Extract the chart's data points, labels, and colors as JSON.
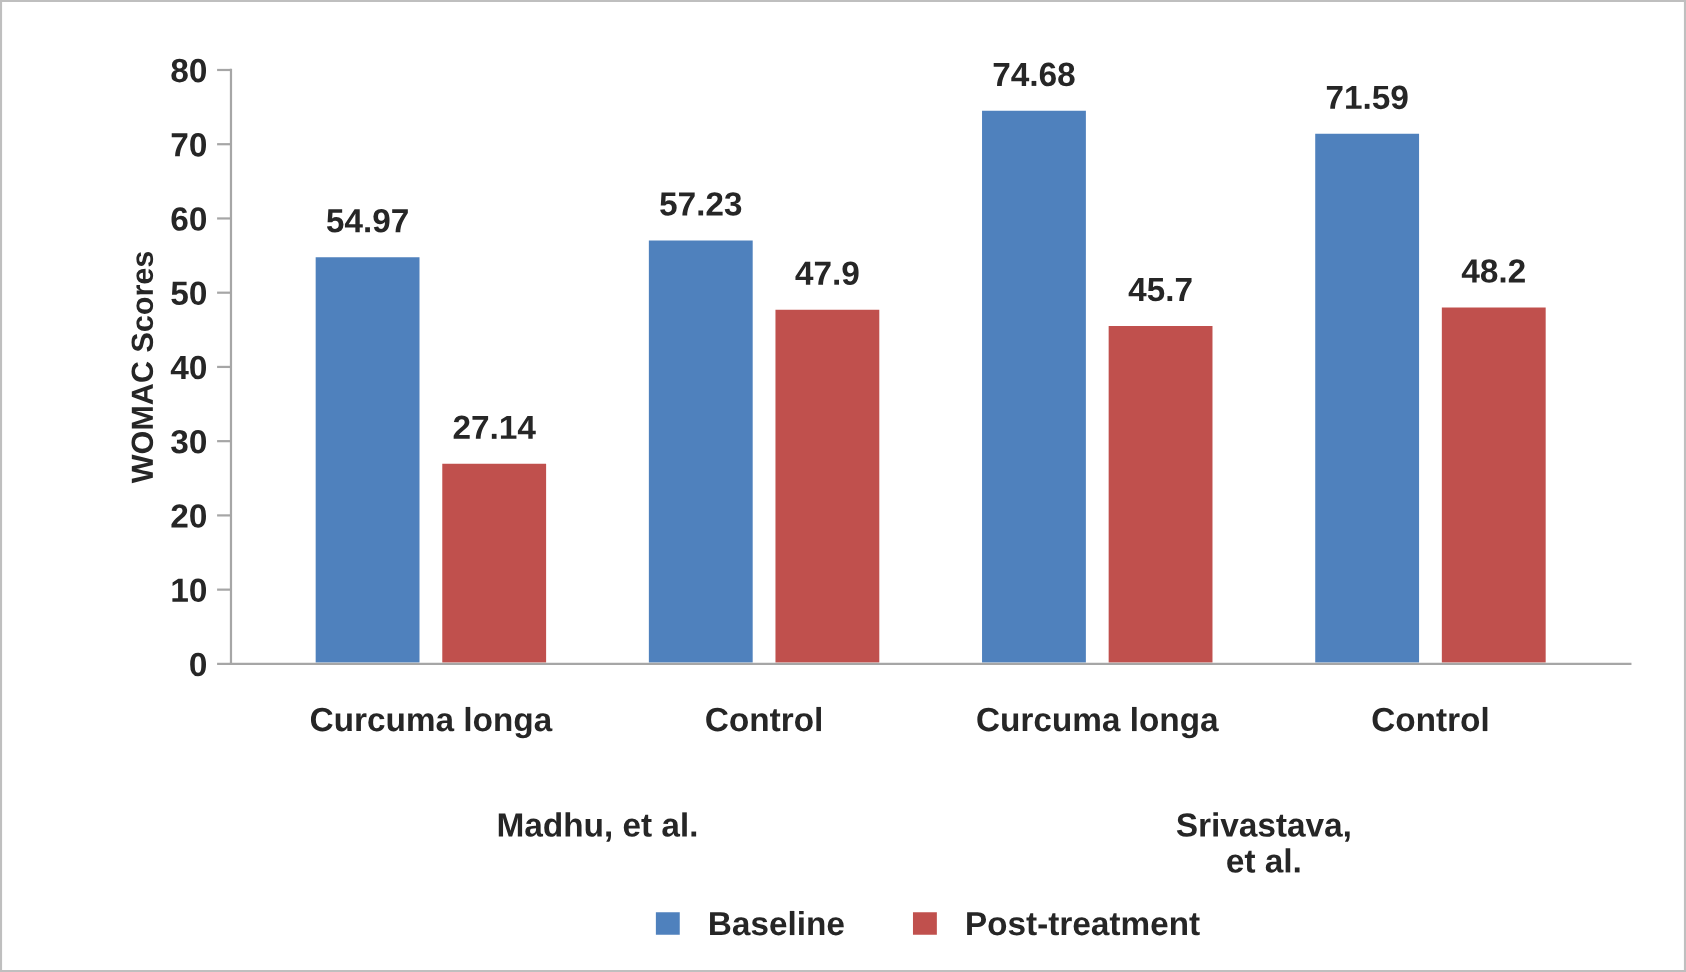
{
  "chart_data": {
    "type": "bar",
    "ylabel": "WOMAC Scores",
    "categories": [
      "Curcuma longa",
      "Control",
      "Curcuma longa",
      "Control"
    ],
    "series": [
      {
        "name": "Baseline",
        "color": "#4f81bd",
        "values": [
          54.97,
          57.23,
          74.68,
          71.59
        ]
      },
      {
        "name": "Post-treatment",
        "color": "#c0504d",
        "values": [
          27.14,
          47.9,
          45.7,
          48.2
        ]
      }
    ],
    "ylim": [
      0,
      80
    ],
    "yticks": [
      0,
      10,
      20,
      30,
      40,
      50,
      60,
      70,
      80
    ],
    "data_labels": true,
    "grid": false,
    "legend": "bottom",
    "annotations": [
      "Madhu, et al.",
      "Srivastava,\net al."
    ]
  }
}
